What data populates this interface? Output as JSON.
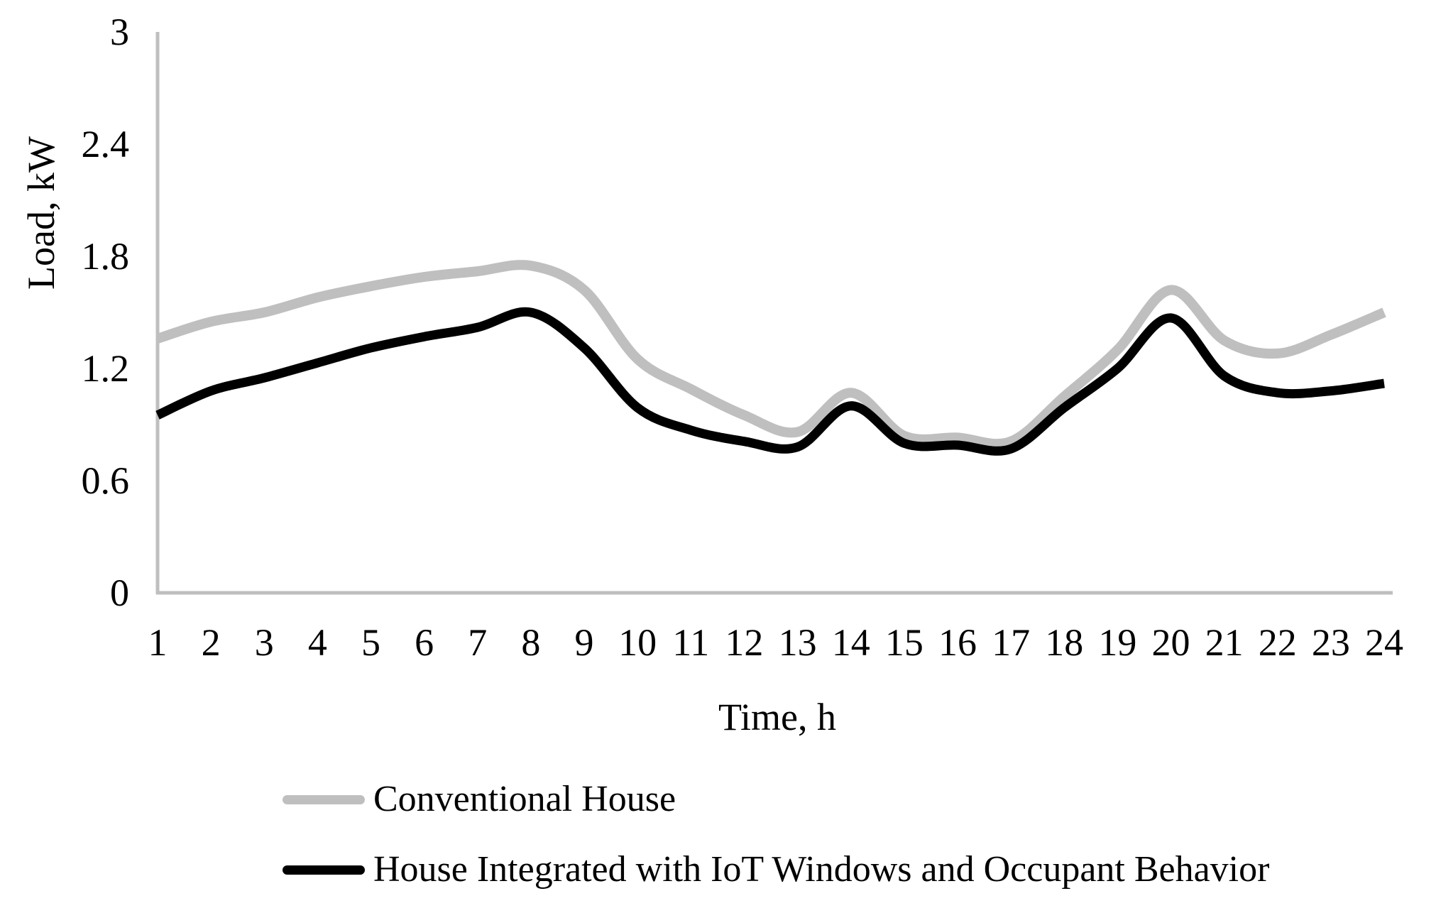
{
  "chart_data": {
    "type": "line",
    "title": "",
    "xlabel": "Time, h",
    "ylabel": "Load, kW",
    "x": [
      1,
      2,
      3,
      4,
      5,
      6,
      7,
      8,
      9,
      10,
      11,
      12,
      13,
      14,
      15,
      16,
      17,
      18,
      19,
      20,
      21,
      22,
      23,
      24
    ],
    "x_tick_labels": [
      "1",
      "2",
      "3",
      "4",
      "5",
      "6",
      "7",
      "8",
      "9",
      "10",
      "11",
      "12",
      "13",
      "14",
      "15",
      "16",
      "17",
      "18",
      "19",
      "20",
      "21",
      "22",
      "23",
      "24"
    ],
    "y_ticks": [
      0,
      0.6,
      1.2,
      1.8,
      2.4,
      3
    ],
    "y_tick_labels": [
      "0",
      "0.6",
      "1.2",
      "1.8",
      "2.4",
      "3"
    ],
    "xlim": [
      1,
      24
    ],
    "ylim": [
      0,
      3
    ],
    "grid": false,
    "smooth_lines": true,
    "legend_position": "bottom-left",
    "axis_color": "#bfbfbf",
    "series": [
      {
        "name": "Conventional House",
        "color": "#bfbfbf",
        "values": [
          1.36,
          1.45,
          1.5,
          1.58,
          1.64,
          1.69,
          1.72,
          1.75,
          1.62,
          1.25,
          1.09,
          0.95,
          0.86,
          1.07,
          0.84,
          0.83,
          0.81,
          1.05,
          1.3,
          1.62,
          1.35,
          1.28,
          1.38,
          1.5
        ]
      },
      {
        "name": "House Integrated with IoT Windows and Occupant Behavior",
        "color": "#000000",
        "values": [
          0.95,
          1.08,
          1.15,
          1.23,
          1.31,
          1.37,
          1.42,
          1.5,
          1.31,
          0.99,
          0.87,
          0.81,
          0.78,
          1.0,
          0.8,
          0.79,
          0.77,
          0.99,
          1.2,
          1.47,
          1.16,
          1.07,
          1.08,
          1.12
        ]
      }
    ]
  }
}
